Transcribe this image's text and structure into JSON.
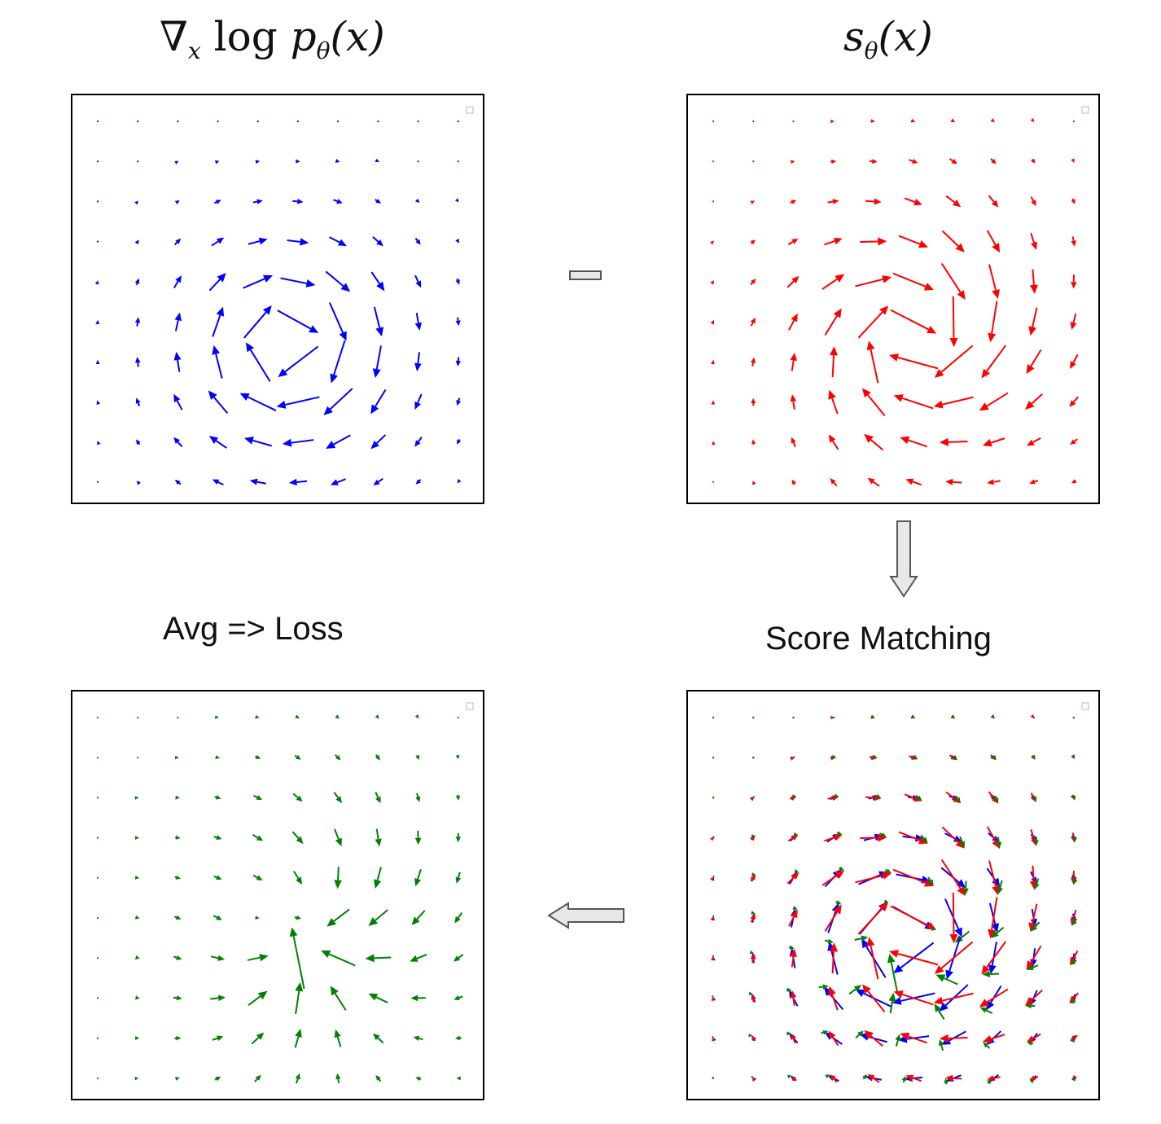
{
  "titles": {
    "true_score": "∇x log pθ(x)",
    "true_score_parts": {
      "nabla": "∇",
      "sub": "x",
      "log": "log",
      "p": "p",
      "theta": "θ",
      "arg": "(x)"
    },
    "model_score": "sθ(x)",
    "model_score_parts": {
      "s": "s",
      "theta": "θ",
      "arg": "(x)"
    },
    "score_matching": "Score Matching",
    "loss": "Avg => Loss"
  },
  "colors": {
    "true_field": "#0000ff",
    "model_field": "#ff0000",
    "difference_field": "#008000",
    "border": "#000000",
    "operator_fill": "#e8e8e8",
    "operator_stroke": "#555555"
  },
  "icons": {
    "minus": "minus-icon",
    "down_arrow": "down-arrow-icon",
    "left_arrow": "left-arrow-icon"
  },
  "panels": {
    "true_score": {
      "field": "true",
      "color_key": "true_field"
    },
    "model_score": {
      "field": "model",
      "color_key": "model_field"
    },
    "score_matching": {
      "field": "overlay"
    },
    "difference": {
      "field": "diff",
      "color_key": "difference_field"
    }
  }
}
